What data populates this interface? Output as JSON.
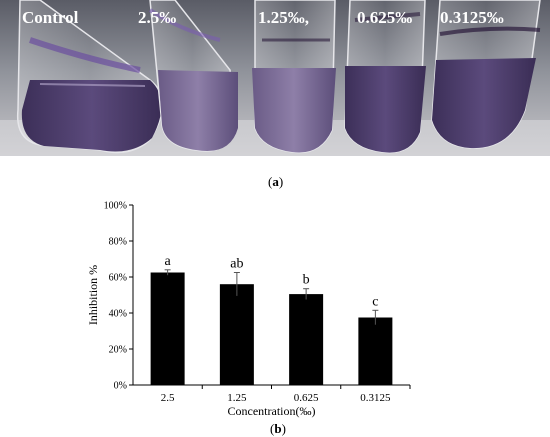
{
  "panel_a": {
    "label": "a",
    "tube_labels": [
      "Control",
      "2.5‰",
      "1.25‰,",
      "0.625‰",
      "0.3125‰"
    ]
  },
  "panel_b": {
    "label": "b"
  },
  "chart_data": {
    "type": "bar",
    "categories": [
      "2.5",
      "1.25",
      "0.625",
      "0.3125"
    ],
    "values": [
      62.5,
      56,
      50.5,
      37.5
    ],
    "errors": [
      1.5,
      6.5,
      3,
      4
    ],
    "significance_letters": [
      "a",
      "ab",
      "b",
      "c"
    ],
    "title": "",
    "xlabel": "Concentration(‰)",
    "ylabel": "Inhibition %",
    "ylim": [
      0,
      100
    ],
    "yticks": [
      "0%",
      "20%",
      "40%",
      "60%",
      "80%",
      "100%"
    ],
    "ytick_values": [
      0,
      20,
      40,
      60,
      80,
      100
    ],
    "bar_color": "#000000",
    "grid": false
  }
}
